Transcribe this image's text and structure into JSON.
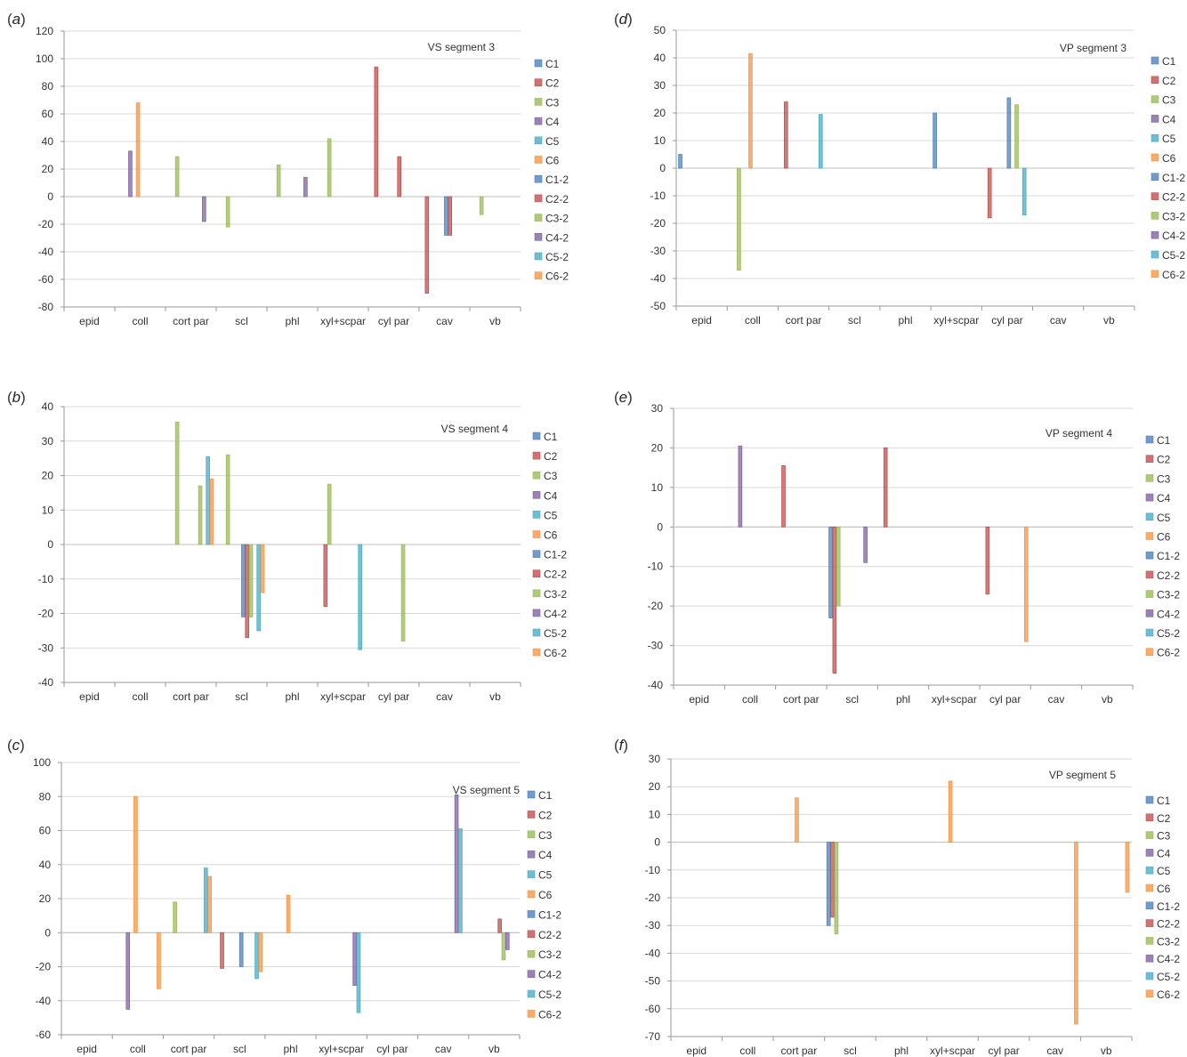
{
  "figure": {
    "series_names": [
      "C1",
      "C2",
      "C3",
      "C4",
      "C5",
      "C6",
      "C1-2",
      "C2-2",
      "C3-2",
      "C4-2",
      "C5-2",
      "C6-2"
    ],
    "series_colors": [
      "#4f81bd",
      "#c0504d",
      "#9bbb59",
      "#8064a2",
      "#4bacc6",
      "#f79646",
      "#4f81bd",
      "#c0504d",
      "#9bbb59",
      "#8064a2",
      "#4bacc6",
      "#f79646"
    ],
    "categories": [
      "epid",
      "coll",
      "cort par",
      "scl",
      "phl",
      "xyl+scpar",
      "cyl par",
      "cav",
      "vb"
    ]
  },
  "chart_data": [
    {
      "panel": "a",
      "type": "bar",
      "title": "VS segment 3",
      "ylim": [
        -80,
        120
      ],
      "ytick_step": 20,
      "grid": true,
      "legend": "right",
      "categories": [
        "epid",
        "coll",
        "cort par",
        "scl",
        "phl",
        "xyl+scpar",
        "cyl par",
        "cav",
        "vb"
      ],
      "series": [
        {
          "name": "C1",
          "values": [
            0,
            0,
            0,
            0,
            0,
            0,
            0,
            0,
            0
          ]
        },
        {
          "name": "C2",
          "values": [
            0,
            0,
            0,
            0,
            0,
            0,
            94,
            -70,
            0
          ]
        },
        {
          "name": "C3",
          "values": [
            0,
            0,
            29,
            -22,
            23,
            42,
            0,
            0,
            -13
          ]
        },
        {
          "name": "C4",
          "values": [
            0,
            33,
            0,
            0,
            0,
            0,
            0,
            0,
            0
          ]
        },
        {
          "name": "C5",
          "values": [
            0,
            0,
            0,
            0,
            0,
            0,
            0,
            0,
            0
          ]
        },
        {
          "name": "C6",
          "values": [
            0,
            68,
            0,
            0,
            0,
            0,
            0,
            0,
            0
          ]
        },
        {
          "name": "C1-2",
          "values": [
            0,
            0,
            0,
            0,
            0,
            0,
            0,
            -28,
            0
          ]
        },
        {
          "name": "C2-2",
          "values": [
            0,
            0,
            0,
            0,
            0,
            0,
            29,
            -28,
            0
          ]
        },
        {
          "name": "C3-2",
          "values": [
            0,
            0,
            0,
            0,
            0,
            0,
            0,
            0,
            0
          ]
        },
        {
          "name": "C4-2",
          "values": [
            0,
            0,
            -18,
            0,
            14,
            0,
            0,
            0,
            0
          ]
        },
        {
          "name": "C5-2",
          "values": [
            0,
            0,
            0,
            0,
            0,
            0,
            0,
            0,
            0
          ]
        },
        {
          "name": "C6-2",
          "values": [
            0,
            0,
            0,
            0,
            0,
            0,
            0,
            0,
            0
          ]
        }
      ]
    },
    {
      "panel": "b",
      "type": "bar",
      "title": "VS segment 4",
      "ylim": [
        -40,
        40
      ],
      "ytick_step": 10,
      "grid": true,
      "legend": "right",
      "categories": [
        "epid",
        "coll",
        "cort par",
        "scl",
        "phl",
        "xyl+scpar",
        "cyl par",
        "cav",
        "vb"
      ],
      "series": [
        {
          "name": "C1",
          "values": [
            0,
            0,
            0,
            0,
            0,
            0,
            0,
            0,
            0
          ]
        },
        {
          "name": "C2",
          "values": [
            0,
            0,
            0,
            0,
            0,
            -18,
            0,
            0,
            0
          ]
        },
        {
          "name": "C3",
          "values": [
            0,
            0,
            35.5,
            26,
            0,
            17.5,
            0,
            0,
            0
          ]
        },
        {
          "name": "C4",
          "values": [
            0,
            0,
            0,
            0,
            0,
            0,
            0,
            0,
            0
          ]
        },
        {
          "name": "C5",
          "values": [
            0,
            0,
            0,
            0,
            0,
            0,
            0,
            0,
            0
          ]
        },
        {
          "name": "C6",
          "values": [
            0,
            0,
            0,
            0,
            0,
            0,
            0,
            0,
            0
          ]
        },
        {
          "name": "C1-2",
          "values": [
            0,
            0,
            0,
            -21,
            0,
            0,
            0,
            0,
            0
          ]
        },
        {
          "name": "C2-2",
          "values": [
            0,
            0,
            0,
            -27,
            0,
            0,
            0,
            0,
            0
          ]
        },
        {
          "name": "C3-2",
          "values": [
            0,
            0,
            17,
            -21,
            0,
            0,
            -28,
            0,
            0
          ]
        },
        {
          "name": "C4-2",
          "values": [
            0,
            0,
            0,
            0,
            0,
            0,
            0,
            0,
            0
          ]
        },
        {
          "name": "C5-2",
          "values": [
            0,
            0,
            25.5,
            -25,
            0,
            -30.5,
            0,
            0,
            0
          ]
        },
        {
          "name": "C6-2",
          "values": [
            0,
            0,
            19,
            -14,
            0,
            0,
            0,
            0,
            0
          ]
        }
      ]
    },
    {
      "panel": "c",
      "type": "bar",
      "title": "VS segment 5",
      "ylim": [
        -60,
        100
      ],
      "ytick_step": 20,
      "grid": true,
      "legend": "right",
      "categories": [
        "epid",
        "coll",
        "cort par",
        "scl",
        "phl",
        "xyl+scpar",
        "cyl par",
        "cav",
        "vb"
      ],
      "series": [
        {
          "name": "C1",
          "values": [
            0,
            0,
            0,
            0,
            0,
            0,
            0,
            0,
            0
          ]
        },
        {
          "name": "C2",
          "values": [
            0,
            0,
            0,
            -21,
            0,
            0,
            0,
            0,
            0
          ]
        },
        {
          "name": "C3",
          "values": [
            0,
            0,
            18,
            0,
            0,
            0,
            0,
            0,
            0
          ]
        },
        {
          "name": "C4",
          "values": [
            0,
            -45,
            0,
            0,
            0,
            0,
            0,
            0,
            0
          ]
        },
        {
          "name": "C5",
          "values": [
            0,
            0,
            0,
            0,
            0,
            0,
            0,
            0,
            0
          ]
        },
        {
          "name": "C6",
          "values": [
            0,
            80,
            0,
            0,
            22,
            0,
            0,
            0,
            0
          ]
        },
        {
          "name": "C1-2",
          "values": [
            0,
            0,
            0,
            -20,
            0,
            0,
            0,
            0,
            0
          ]
        },
        {
          "name": "C2-2",
          "values": [
            0,
            0,
            0,
            0,
            0,
            0,
            0,
            0,
            8
          ]
        },
        {
          "name": "C3-2",
          "values": [
            0,
            0,
            0,
            0,
            0,
            0,
            0,
            0,
            -16
          ]
        },
        {
          "name": "C4-2",
          "values": [
            0,
            0,
            0,
            0,
            0,
            -31,
            0,
            81,
            -10
          ]
        },
        {
          "name": "C5-2",
          "values": [
            0,
            0,
            38,
            -27,
            0,
            -47,
            0,
            61,
            0
          ]
        },
        {
          "name": "C6-2",
          "values": [
            0,
            -33,
            33,
            -23,
            0,
            0,
            0,
            0,
            0
          ]
        }
      ]
    },
    {
      "panel": "d",
      "type": "bar",
      "title": "VP segment 3",
      "ylim": [
        -50,
        50
      ],
      "ytick_step": 10,
      "grid": true,
      "legend": "right",
      "categories": [
        "epid",
        "coll",
        "cort par",
        "scl",
        "phl",
        "xyl+scpar",
        "cyl par",
        "cav",
        "vb"
      ],
      "series": [
        {
          "name": "C1",
          "values": [
            5,
            0,
            0,
            0,
            0,
            20,
            0,
            0,
            0
          ]
        },
        {
          "name": "C2",
          "values": [
            0,
            0,
            24,
            0,
            0,
            0,
            -18,
            0,
            0
          ]
        },
        {
          "name": "C3",
          "values": [
            0,
            -37,
            0,
            0,
            0,
            0,
            0,
            0,
            0
          ]
        },
        {
          "name": "C4",
          "values": [
            0,
            0,
            0,
            0,
            0,
            0,
            0,
            0,
            0
          ]
        },
        {
          "name": "C5",
          "values": [
            0,
            0,
            0,
            0,
            0,
            0,
            0,
            0,
            0
          ]
        },
        {
          "name": "C6",
          "values": [
            0,
            41.5,
            0,
            0,
            0,
            0,
            0,
            0,
            0
          ]
        },
        {
          "name": "C1-2",
          "values": [
            0,
            0,
            0,
            0,
            0,
            0,
            25.5,
            0,
            0
          ]
        },
        {
          "name": "C2-2",
          "values": [
            0,
            0,
            0,
            0,
            0,
            0,
            0,
            0,
            0
          ]
        },
        {
          "name": "C3-2",
          "values": [
            0,
            0,
            0,
            0,
            0,
            0,
            23,
            0,
            0
          ]
        },
        {
          "name": "C4-2",
          "values": [
            0,
            0,
            0,
            0,
            0,
            0,
            0,
            0,
            0
          ]
        },
        {
          "name": "C5-2",
          "values": [
            0,
            0,
            19.5,
            0,
            0,
            0,
            -17,
            0,
            0
          ]
        },
        {
          "name": "C6-2",
          "values": [
            0,
            0,
            0,
            0,
            0,
            0,
            0,
            0,
            0
          ]
        }
      ]
    },
    {
      "panel": "e",
      "type": "bar",
      "title": "VP segment 4",
      "ylim": [
        -40,
        30
      ],
      "ytick_step": 10,
      "grid": true,
      "legend": "right",
      "categories": [
        "epid",
        "coll",
        "cort par",
        "scl",
        "phl",
        "xyl+scpar",
        "cyl par",
        "cav",
        "vb"
      ],
      "series": [
        {
          "name": "C1",
          "values": [
            0,
            0,
            0,
            -23,
            0,
            0,
            0,
            0,
            0
          ]
        },
        {
          "name": "C2",
          "values": [
            0,
            0,
            15.5,
            -37,
            20,
            0,
            -17,
            0,
            0
          ]
        },
        {
          "name": "C3",
          "values": [
            0,
            0,
            0,
            -20,
            0,
            0,
            0,
            0,
            0
          ]
        },
        {
          "name": "C4",
          "values": [
            0,
            20.5,
            0,
            0,
            0,
            0,
            0,
            0,
            0
          ]
        },
        {
          "name": "C5",
          "values": [
            0,
            0,
            0,
            0,
            0,
            0,
            0,
            0,
            0
          ]
        },
        {
          "name": "C6",
          "values": [
            0,
            0,
            0,
            0,
            0,
            0,
            0,
            0,
            0
          ]
        },
        {
          "name": "C1-2",
          "values": [
            0,
            0,
            0,
            0,
            0,
            0,
            0,
            0,
            0
          ]
        },
        {
          "name": "C2-2",
          "values": [
            0,
            0,
            0,
            0,
            0,
            0,
            0,
            0,
            0
          ]
        },
        {
          "name": "C3-2",
          "values": [
            0,
            0,
            0,
            0,
            0,
            0,
            0,
            0,
            0
          ]
        },
        {
          "name": "C4-2",
          "values": [
            0,
            0,
            0,
            -9,
            0,
            0,
            0,
            0,
            0
          ]
        },
        {
          "name": "C5-2",
          "values": [
            0,
            0,
            0,
            0,
            0,
            0,
            0,
            0,
            0
          ]
        },
        {
          "name": "C6-2",
          "values": [
            0,
            0,
            0,
            0,
            0,
            0,
            -29,
            0,
            0
          ]
        }
      ]
    },
    {
      "panel": "f",
      "type": "bar",
      "title": "VP segment 5",
      "ylim": [
        -70,
        30
      ],
      "ytick_step": 10,
      "grid": true,
      "legend": "right",
      "categories": [
        "epid",
        "coll",
        "cort par",
        "scl",
        "phl",
        "xyl+scpar",
        "cyl par",
        "cav",
        "vb"
      ],
      "series": [
        {
          "name": "C1",
          "values": [
            0,
            0,
            0,
            -30,
            0,
            0,
            0,
            0,
            0
          ]
        },
        {
          "name": "C2",
          "values": [
            0,
            0,
            0,
            -27,
            0,
            0,
            0,
            0,
            0
          ]
        },
        {
          "name": "C3",
          "values": [
            0,
            0,
            0,
            -33,
            0,
            0,
            0,
            0,
            0
          ]
        },
        {
          "name": "C4",
          "values": [
            0,
            0,
            0,
            0,
            0,
            0,
            0,
            0,
            0
          ]
        },
        {
          "name": "C5",
          "values": [
            0,
            0,
            0,
            0,
            0,
            0,
            0,
            0,
            0
          ]
        },
        {
          "name": "C6",
          "values": [
            0,
            0,
            16,
            0,
            0,
            22,
            0,
            0,
            0
          ]
        },
        {
          "name": "C1-2",
          "values": [
            0,
            0,
            0,
            0,
            0,
            0,
            0,
            0,
            0
          ]
        },
        {
          "name": "C2-2",
          "values": [
            0,
            0,
            0,
            0,
            0,
            0,
            0,
            0,
            0
          ]
        },
        {
          "name": "C3-2",
          "values": [
            0,
            0,
            0,
            0,
            0,
            0,
            0,
            0,
            0
          ]
        },
        {
          "name": "C4-2",
          "values": [
            0,
            0,
            0,
            0,
            0,
            0,
            0,
            0,
            0
          ]
        },
        {
          "name": "C5-2",
          "values": [
            0,
            0,
            0,
            0,
            0,
            0,
            0,
            0,
            0
          ]
        },
        {
          "name": "C6-2",
          "values": [
            0,
            0,
            0,
            0,
            0,
            0,
            0,
            -65.5,
            -18
          ]
        }
      ]
    }
  ]
}
